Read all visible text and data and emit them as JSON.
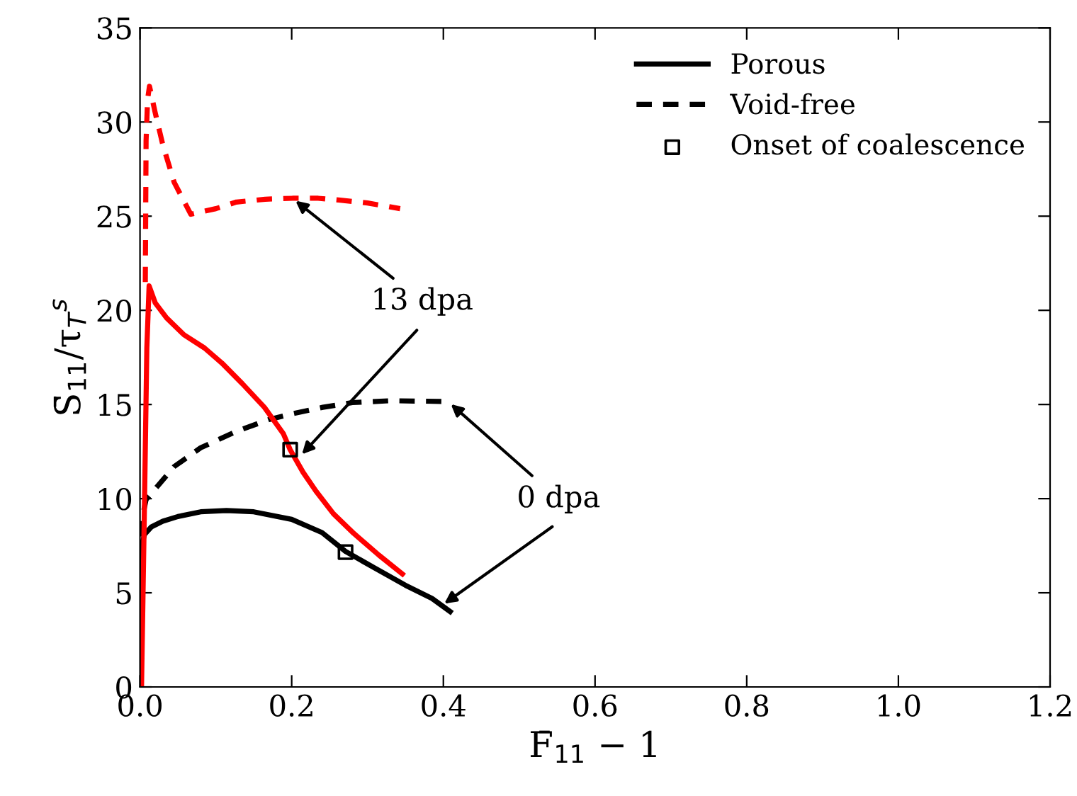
{
  "chart_data": {
    "type": "line",
    "xlabel": "F̄$_{11}$ − 1",
    "ylabel": "S̄$_{11}$/τ$_{T}$$^{s}$",
    "xlim": [
      0,
      1.2
    ],
    "ylim": [
      0,
      35
    ],
    "xticks": [
      {
        "value": 0,
        "label": "0.0"
      },
      {
        "value": 0.2,
        "label": "0.2"
      },
      {
        "value": 0.4,
        "label": "0.4"
      },
      {
        "value": 0.6,
        "label": "0.6"
      },
      {
        "value": 0.8,
        "label": "0.8"
      },
      {
        "value": 1.0,
        "label": "1.0"
      },
      {
        "value": 1.2,
        "label": "1.2"
      }
    ],
    "yticks": [
      0,
      5,
      10,
      15,
      20,
      25,
      30,
      35
    ],
    "grid": false,
    "legend": "top right",
    "series": [
      {
        "name": "Porous",
        "color": "#000000",
        "line_style": "solid",
        "x": [
          0,
          0.002,
          0.006,
          0.015,
          0.03,
          0.05,
          0.08,
          0.114,
          0.15,
          0.2,
          0.24,
          0.271,
          0.31,
          0.35,
          0.385,
          0.409
        ],
        "values": [
          0,
          7.5,
          8.1,
          8.5,
          8.8,
          9.05,
          9.3,
          9.37,
          9.3,
          8.9,
          8.2,
          7.2,
          6.3,
          5.4,
          4.7,
          4.0
        ]
      },
      {
        "name": "Void-free",
        "color": "#000000",
        "line_style": "dashed",
        "x": [
          0.0,
          0.002,
          0.008,
          0.045,
          0.08,
          0.127,
          0.17,
          0.2,
          0.241,
          0.28,
          0.33,
          0.406
        ],
        "values": [
          8.0,
          8.8,
          9.95,
          11.7,
          12.7,
          13.57,
          14.2,
          14.5,
          14.85,
          15.1,
          15.2,
          15.16
        ]
      },
      {
        "color": "#ff0000",
        "line_style": "solid",
        "x": [
          0.002,
          0.006,
          0.009,
          0.012,
          0.02,
          0.035,
          0.058,
          0.085,
          0.108,
          0.135,
          0.164,
          0.189,
          0.198,
          0.215,
          0.232,
          0.255,
          0.282,
          0.315,
          0.346
        ],
        "values": [
          0,
          10,
          18,
          21.3,
          20.4,
          19.6,
          18.7,
          18.0,
          17.2,
          16.1,
          14.85,
          13.45,
          12.6,
          11.4,
          10.4,
          9.2,
          8.15,
          7.0,
          6.0
        ]
      },
      {
        "color": "#ff0000",
        "line_style": "dashed",
        "x": [
          0.007,
          0.008,
          0.01,
          0.0125,
          0.02,
          0.03,
          0.045,
          0.067,
          0.1,
          0.127,
          0.165,
          0.201,
          0.235,
          0.264,
          0.3,
          0.343
        ],
        "values": [
          21.5,
          29,
          31.2,
          31.9,
          30.5,
          28.8,
          26.8,
          25.1,
          25.4,
          25.75,
          25.9,
          25.95,
          25.95,
          25.85,
          25.7,
          25.4
        ]
      },
      {
        "name": "Onset of coalescence",
        "type": "scatter",
        "marker": "square",
        "color": "#000000",
        "x": [
          0.198,
          0.271
        ],
        "values": [
          12.6,
          7.16
        ]
      }
    ],
    "annotations": [
      {
        "text": "13 dpa",
        "x": 0.201,
        "y": 25.95
      },
      {
        "text": "0 dpa",
        "x": 0.406,
        "y": 15.16
      }
    ]
  }
}
